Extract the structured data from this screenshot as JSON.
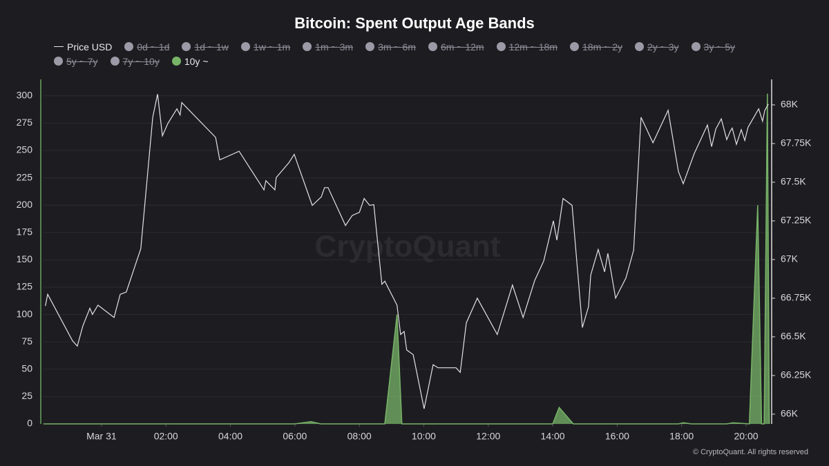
{
  "chart_data": {
    "type": "line",
    "title": "Bitcoin: Spent Output Age Bands",
    "watermark": "CryptoQuant",
    "footer": "© CryptoQuant. All rights reserved",
    "xlim": [
      -1.82,
      20.75
    ],
    "xticks": [
      {
        "value": 0,
        "label": "Mar 31"
      },
      {
        "value": 2,
        "label": "02:00"
      },
      {
        "value": 4,
        "label": "04:00"
      },
      {
        "value": 6,
        "label": "06:00"
      },
      {
        "value": 8,
        "label": "08:00"
      },
      {
        "value": 10,
        "label": "10:00"
      },
      {
        "value": 12,
        "label": "12:00"
      },
      {
        "value": 14,
        "label": "14:00"
      },
      {
        "value": 16,
        "label": "16:00"
      },
      {
        "value": 18,
        "label": "18:00"
      },
      {
        "value": 20,
        "label": "20:00"
      }
    ],
    "ylim": [
      0,
      315
    ],
    "yticks": [
      0,
      25,
      50,
      75,
      100,
      125,
      150,
      175,
      200,
      225,
      250,
      275,
      300
    ],
    "y2lim": [
      65937,
      68165
    ],
    "y2ticks": [
      {
        "value": 66000,
        "label": "66K"
      },
      {
        "value": 66250,
        "label": "66.25K"
      },
      {
        "value": 66500,
        "label": "66.5K"
      },
      {
        "value": 66750,
        "label": "66.75K"
      },
      {
        "value": 67000,
        "label": "67K"
      },
      {
        "value": 67250,
        "label": "67.25K"
      },
      {
        "value": 67500,
        "label": "67.5K"
      },
      {
        "value": 67750,
        "label": "67.75K"
      },
      {
        "value": 68000,
        "label": "68K"
      }
    ],
    "grid": true,
    "x": [
      -1.74,
      -1.67,
      -0.9,
      -0.75,
      -0.58,
      -0.36,
      -0.28,
      -0.11,
      0.39,
      0.58,
      0.77,
      1.22,
      1.59,
      1.74,
      1.89,
      2.06,
      2.34,
      2.44,
      2.49,
      3.54,
      3.67,
      4.27,
      5.04,
      5.1,
      5.38,
      5.42,
      5.81,
      5.98,
      6.54,
      6.82,
      6.92,
      7.03,
      7.57,
      7.78,
      8.0,
      8.15,
      8.32,
      8.45,
      8.7,
      8.79,
      9.17,
      9.28,
      9.39,
      9.47,
      9.67,
      10.01,
      10.25,
      10.29,
      10.44,
      11.0,
      11.13,
      11.32,
      11.66,
      12.28,
      12.75,
      13.08,
      13.44,
      13.72,
      14.02,
      14.13,
      14.32,
      14.6,
      14.92,
      15.11,
      15.18,
      15.41,
      15.61,
      15.71,
      15.95,
      16.27,
      16.51,
      16.74,
      17.11,
      17.58,
      17.9,
      18.05,
      18.39,
      18.8,
      18.93,
      19.06,
      19.23,
      19.4,
      19.51,
      19.57,
      19.7,
      19.85,
      19.96,
      20.06,
      20.39,
      20.51,
      20.58,
      20.69
    ],
    "series": [
      {
        "name": "Price USD",
        "color": "#e4e4e6",
        "axis": "y2",
        "visible": true,
        "values": [
          66700,
          66775,
          66475,
          66440,
          66570,
          66685,
          66645,
          66705,
          66625,
          66775,
          66790,
          67070,
          67920,
          68070,
          67800,
          67880,
          67975,
          67935,
          68015,
          67790,
          67645,
          67700,
          67450,
          67510,
          67450,
          67530,
          67625,
          67680,
          67350,
          67405,
          67465,
          67465,
          67220,
          67285,
          67305,
          67395,
          67350,
          67355,
          66840,
          66860,
          66705,
          66515,
          66535,
          66415,
          66385,
          66035,
          66280,
          66320,
          66300,
          66300,
          66270,
          66590,
          66750,
          66515,
          66835,
          66625,
          66865,
          66990,
          67250,
          67125,
          67395,
          67350,
          66560,
          66695,
          66900,
          67065,
          66920,
          67040,
          66750,
          66880,
          67060,
          67920,
          67755,
          67965,
          67570,
          67490,
          67685,
          67870,
          67730,
          67845,
          67910,
          67775,
          67830,
          67850,
          67745,
          67840,
          67770,
          67855,
          67975,
          67895,
          67965,
          68005
        ]
      },
      {
        "name": "0d ~ 1d",
        "color": "#9c9aa6",
        "visible": false
      },
      {
        "name": "1d ~ 1w",
        "color": "#9c9aa6",
        "visible": false
      },
      {
        "name": "1w ~ 1m",
        "color": "#9c9aa6",
        "visible": false
      },
      {
        "name": "1m ~ 3m",
        "color": "#9c9aa6",
        "visible": false
      },
      {
        "name": "3m ~ 6m",
        "color": "#9c9aa6",
        "visible": false
      },
      {
        "name": "6m ~ 12m",
        "color": "#9c9aa6",
        "visible": false
      },
      {
        "name": "12m ~ 18m",
        "color": "#9c9aa6",
        "visible": false
      },
      {
        "name": "18m ~ 2y",
        "color": "#9c9aa6",
        "visible": false
      },
      {
        "name": "2y ~ 3y",
        "color": "#9c9aa6",
        "visible": false
      },
      {
        "name": "3y ~ 5y",
        "color": "#9c9aa6",
        "visible": false
      },
      {
        "name": "5y ~ 7y",
        "color": "#9c9aa6",
        "visible": false
      },
      {
        "name": "7y ~ 10y",
        "color": "#9c9aa6",
        "visible": false
      },
      {
        "name": "10y ~",
        "color": "#78b468",
        "visible": true,
        "area": true,
        "x": [
          -1.8,
          6.0,
          6.5,
          6.8,
          8.79,
          9.17,
          9.32,
          14.0,
          14.2,
          14.64,
          17.9,
          18.05,
          18.3,
          19.4,
          19.6,
          20.1,
          20.36,
          20.48,
          20.56,
          20.66,
          20.72
        ],
        "values": [
          0,
          0,
          2,
          0,
          0,
          100,
          0,
          0,
          15,
          0,
          0,
          1,
          0,
          0,
          1,
          0,
          200,
          0,
          0,
          302,
          0
        ]
      }
    ]
  }
}
